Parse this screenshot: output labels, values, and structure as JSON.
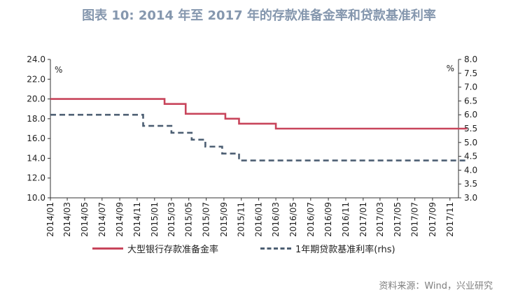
{
  "title": "图表 10: 2014 年至 2017 年的存款准备金率和贷款基准利率",
  "source": "资料来源：Wind，兴业研究",
  "chart_data": {
    "type": "line",
    "grid": false,
    "legend_position": "bottom",
    "y_left": {
      "unit_label": "%",
      "range": [
        10.0,
        24.0
      ],
      "ticks": [
        "10.0",
        "12.0",
        "14.0",
        "16.0",
        "18.0",
        "20.0",
        "22.0",
        "24.0"
      ]
    },
    "y_right": {
      "unit_label": "%",
      "range": [
        3.0,
        8.0
      ],
      "ticks": [
        "3.0",
        "3.5",
        "4.0",
        "4.5",
        "5.0",
        "5.5",
        "6.0",
        "6.5",
        "7.0",
        "7.5",
        "8.0"
      ]
    },
    "x_range": [
      "2014-01",
      "2017-12"
    ],
    "x_ticks": [
      "2014/01",
      "2014/03",
      "2014/05",
      "2014/07",
      "2014/09",
      "2014/11",
      "2015/01",
      "2015/03",
      "2015/05",
      "2015/07",
      "2015/09",
      "2015/11",
      "2016/01",
      "2016/03",
      "2016/05",
      "2016/07",
      "2016/09",
      "2016/11",
      "2017/01",
      "2017/03",
      "2017/05",
      "2017/07",
      "2017/09",
      "2017/11"
    ],
    "series": [
      {
        "name": "大型银行存款准备金率",
        "axis": "left",
        "color": "#C8455B",
        "style": "solid",
        "points": [
          {
            "x": "2014-01-01",
            "y": 20.0
          },
          {
            "x": "2015-02-05",
            "y": 19.5
          },
          {
            "x": "2015-04-20",
            "y": 18.5
          },
          {
            "x": "2015-09-06",
            "y": 18.0
          },
          {
            "x": "2015-10-24",
            "y": 17.5
          },
          {
            "x": "2016-03-01",
            "y": 17.0
          },
          {
            "x": "2017-12-31",
            "y": 17.0
          }
        ]
      },
      {
        "name": "1年期贷款基准利率(rhs)",
        "axis": "right",
        "color": "#4D5F73",
        "style": "dashed",
        "points": [
          {
            "x": "2014-01-01",
            "y": 6.0
          },
          {
            "x": "2014-11-22",
            "y": 5.6
          },
          {
            "x": "2015-03-01",
            "y": 5.35
          },
          {
            "x": "2015-05-11",
            "y": 5.1
          },
          {
            "x": "2015-06-28",
            "y": 4.85
          },
          {
            "x": "2015-08-26",
            "y": 4.6
          },
          {
            "x": "2015-10-24",
            "y": 4.35
          },
          {
            "x": "2017-12-31",
            "y": 4.35
          }
        ]
      }
    ]
  }
}
